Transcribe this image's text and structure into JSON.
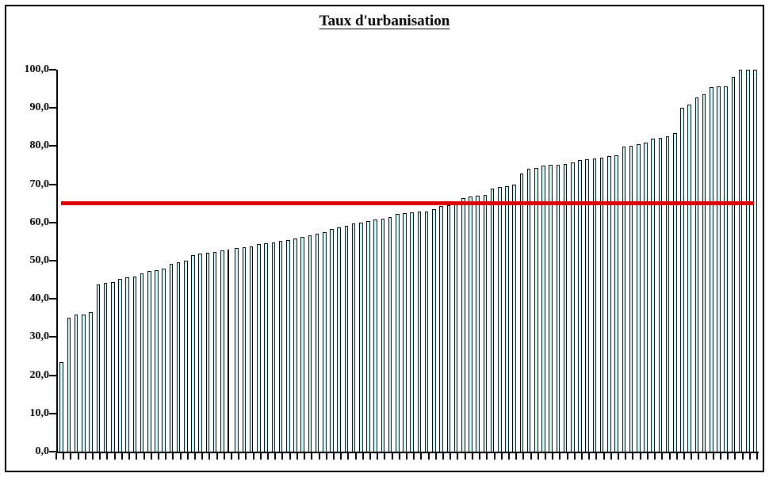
{
  "title": "Taux d'urbanisation",
  "chart_data": {
    "type": "bar",
    "title": "Taux d'urbanisation",
    "xlabel": "",
    "ylabel": "",
    "ylim": [
      0,
      100
    ],
    "grid": "off",
    "legend": "none",
    "x_tick_labels": "none",
    "bar_fill_color": "#ccffff",
    "bar_border_color": "#000000",
    "narrow_bar_index": 24,
    "y_ticks": [
      {
        "label": "0,0",
        "value": 0
      },
      {
        "label": "10,0",
        "value": 10
      },
      {
        "label": "20,0",
        "value": 20
      },
      {
        "label": "30,0",
        "value": 30
      },
      {
        "label": "40,0",
        "value": 40
      },
      {
        "label": "50,0",
        "value": 50
      },
      {
        "label": "60,0",
        "value": 60
      },
      {
        "label": "70,0",
        "value": 70
      },
      {
        "label": "80,0",
        "value": 80
      },
      {
        "label": "90,0",
        "value": 90
      },
      {
        "label": "100,0",
        "value": 100
      }
    ],
    "reference_line": {
      "value": 65,
      "color": "#dd0000"
    },
    "values": [
      23.5,
      35.0,
      35.8,
      36.0,
      36.5,
      43.8,
      44.2,
      44.4,
      45.3,
      45.6,
      45.9,
      46.7,
      47.4,
      47.6,
      48.0,
      49.1,
      49.5,
      50.1,
      51.5,
      51.9,
      52.1,
      52.3,
      52.8,
      53.0,
      53.3,
      53.5,
      53.7,
      54.3,
      54.5,
      54.8,
      55.1,
      55.4,
      55.8,
      56.3,
      56.7,
      57.0,
      57.5,
      58.4,
      58.7,
      59.2,
      59.7,
      60.0,
      60.4,
      60.7,
      61.0,
      61.5,
      62.2,
      62.4,
      62.6,
      62.8,
      62.9,
      63.4,
      64.3,
      64.6,
      64.7,
      66.3,
      66.8,
      67.0,
      67.3,
      68.9,
      69.4,
      69.6,
      70.0,
      72.8,
      74.0,
      74.2,
      75.0,
      75.1,
      75.2,
      75.4,
      75.7,
      76.4,
      76.5,
      76.8,
      77.0,
      77.3,
      77.6,
      79.8,
      80.0,
      80.5,
      81.0,
      81.9,
      82.2,
      82.5,
      83.4,
      90.1,
      90.9,
      92.7,
      93.5,
      95.5,
      95.6,
      95.6,
      98.1,
      100.0,
      100.0,
      100.0
    ]
  }
}
